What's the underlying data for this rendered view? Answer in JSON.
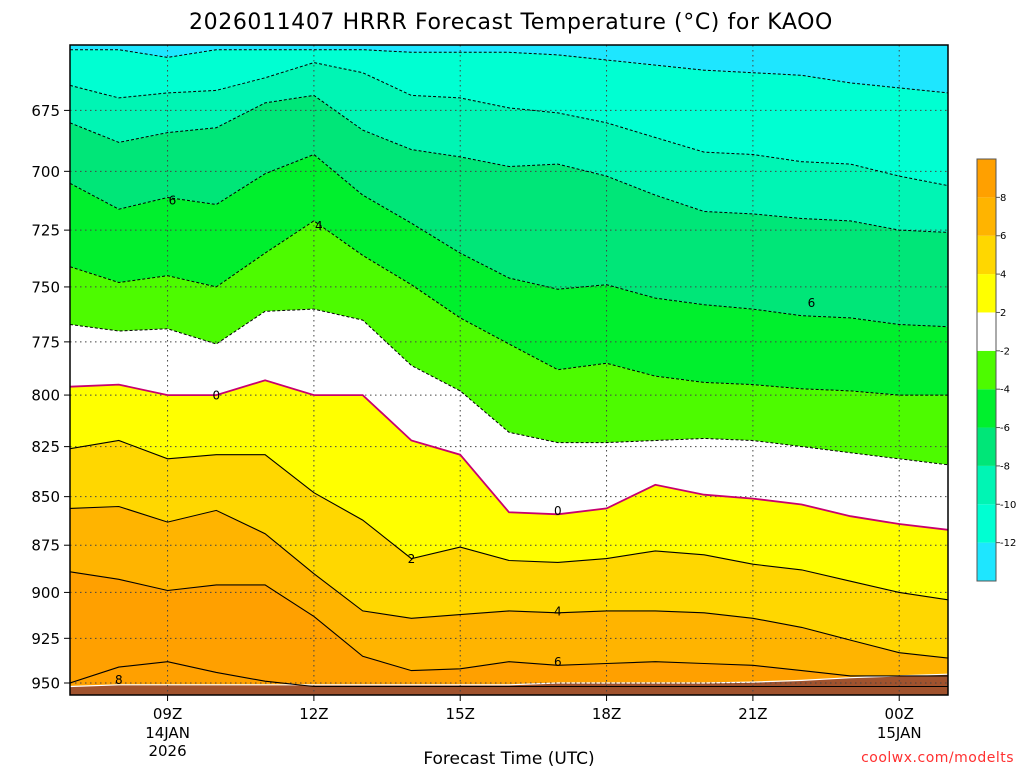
{
  "chart_data": {
    "type": "heatmap",
    "title": "2026011407 HRRR Forecast Temperature (°C) for KAOO",
    "xlabel": "Forecast Time (UTC)",
    "ylabel": "",
    "x_unit": "forecast hours from 07Z 14JAN2026",
    "xlim": [
      0,
      18
    ],
    "ylim": [
      950,
      655
    ],
    "y_scale": "log-pressure",
    "y_ticks": [
      675,
      700,
      725,
      750,
      775,
      800,
      825,
      850,
      875,
      900,
      925,
      950
    ],
    "x_ticks": [
      {
        "value": 2,
        "label": "09Z",
        "sublabels": [
          "14JAN",
          "2026"
        ]
      },
      {
        "value": 5,
        "label": "12Z",
        "sublabels": []
      },
      {
        "value": 8,
        "label": "15Z",
        "sublabels": []
      },
      {
        "value": 11,
        "label": "18Z",
        "sublabels": []
      },
      {
        "value": 14,
        "label": "21Z",
        "sublabels": []
      },
      {
        "value": 17,
        "label": "00Z",
        "sublabels": [
          "15JAN"
        ]
      }
    ],
    "x_hours": [
      0,
      1,
      2,
      3,
      4,
      5,
      6,
      7,
      8,
      9,
      10,
      11,
      12,
      13,
      14,
      15,
      16,
      17,
      18
    ],
    "contours": [
      {
        "level": -12,
        "pressure": [
          651,
          651,
          654,
          651,
          651,
          651,
          651,
          652,
          652,
          652,
          653,
          655,
          657,
          659,
          660,
          661,
          664,
          666,
          668
        ]
      },
      {
        "level": -10,
        "pressure": [
          665,
          670,
          668,
          667,
          662,
          656,
          660,
          669,
          670,
          674,
          676,
          680,
          686,
          692,
          693,
          696,
          697,
          702,
          706
        ]
      },
      {
        "level": -8,
        "pressure": [
          680,
          688,
          684,
          682,
          672,
          669,
          683,
          691,
          694,
          698,
          697,
          702,
          710,
          717,
          718,
          720,
          721,
          725,
          726
        ]
      },
      {
        "level": -6,
        "pressure": [
          705,
          716,
          711,
          714,
          701,
          693,
          710,
          722,
          735,
          746,
          751,
          749,
          755,
          758,
          760,
          763,
          764,
          767,
          768
        ]
      },
      {
        "level": -4,
        "pressure": [
          741,
          748,
          745,
          750,
          735,
          721,
          736,
          749,
          764,
          776,
          788,
          785,
          791,
          794,
          795,
          797,
          798,
          800,
          800
        ]
      },
      {
        "level": -2,
        "pressure": [
          767,
          770,
          769,
          776,
          761,
          760,
          765,
          786,
          798,
          818,
          823,
          823,
          822,
          821,
          822,
          825,
          828,
          831,
          834
        ]
      },
      {
        "level": 0,
        "pressure": [
          796,
          795,
          800,
          800,
          793,
          800,
          800,
          822,
          829,
          858,
          859,
          856,
          844,
          849,
          851,
          854,
          860,
          864,
          867
        ]
      },
      {
        "level": 2,
        "pressure": [
          826,
          822,
          831,
          829,
          829,
          848,
          862,
          882,
          876,
          883,
          884,
          882,
          878,
          880,
          885,
          888,
          894,
          900,
          904
        ]
      },
      {
        "level": 4,
        "pressure": [
          856,
          855,
          863,
          857,
          869,
          890,
          910,
          914,
          912,
          910,
          911,
          910,
          910,
          911,
          914,
          919,
          926,
          933,
          936
        ]
      },
      {
        "level": 6,
        "pressure": [
          889,
          893,
          899,
          896,
          896,
          913,
          935,
          943,
          942,
          938,
          940,
          939,
          938,
          939,
          940,
          943,
          946,
          946,
          946
        ]
      },
      {
        "level": 8,
        "pressure": [
          950,
          941,
          938,
          944,
          949,
          952,
          952,
          952,
          952,
          952,
          952,
          952,
          952,
          952,
          952,
          952,
          952,
          952,
          952
        ]
      }
    ],
    "surface_pressure": [
      952,
      951,
      951,
      951,
      951,
      951,
      951,
      951,
      951,
      951,
      950,
      950,
      950,
      950,
      949.5,
      948.5,
      947,
      946,
      945
    ],
    "contour_labels": [
      {
        "text": "6",
        "hour": 2.1,
        "pressure": 712
      },
      {
        "text": "4",
        "hour": 5.1,
        "pressure": 723
      },
      {
        "text": "6",
        "hour": 15.2,
        "pressure": 757
      },
      {
        "text": "0",
        "hour": 3.0,
        "pressure": 800
      },
      {
        "text": "0",
        "hour": 10.0,
        "pressure": 857
      },
      {
        "text": "2",
        "hour": 7.0,
        "pressure": 882
      },
      {
        "text": "4",
        "hour": 10.0,
        "pressure": 910
      },
      {
        "text": "6",
        "hour": 10.0,
        "pressure": 938
      },
      {
        "text": "8",
        "hour": 1.0,
        "pressure": 948
      }
    ],
    "colorbar": {
      "levels": [
        -14,
        -12,
        -10,
        -8,
        -6,
        -4,
        -2,
        2,
        4,
        6,
        8,
        10
      ],
      "tick_labels": [
        "8",
        "6",
        "4",
        "2",
        "-2",
        "-4",
        "-6",
        "-8",
        "-10",
        "-12"
      ],
      "colors": [
        "#1ee6ff",
        "#00ffd2",
        "#00f5b4",
        "#00e678",
        "#00f02d",
        "#4dfb00",
        "#ffffff",
        "#ffff00",
        "#ffd700",
        "#ffb400",
        "#ffa000"
      ]
    },
    "colors": {
      "ground": "#a0522d",
      "freezing_line": "#c8006e",
      "warm_contour": "#000000",
      "cold_contour": "#000000"
    }
  },
  "watermark": {
    "text": "coolwx.com/modelts",
    "color": "#ff3030"
  }
}
